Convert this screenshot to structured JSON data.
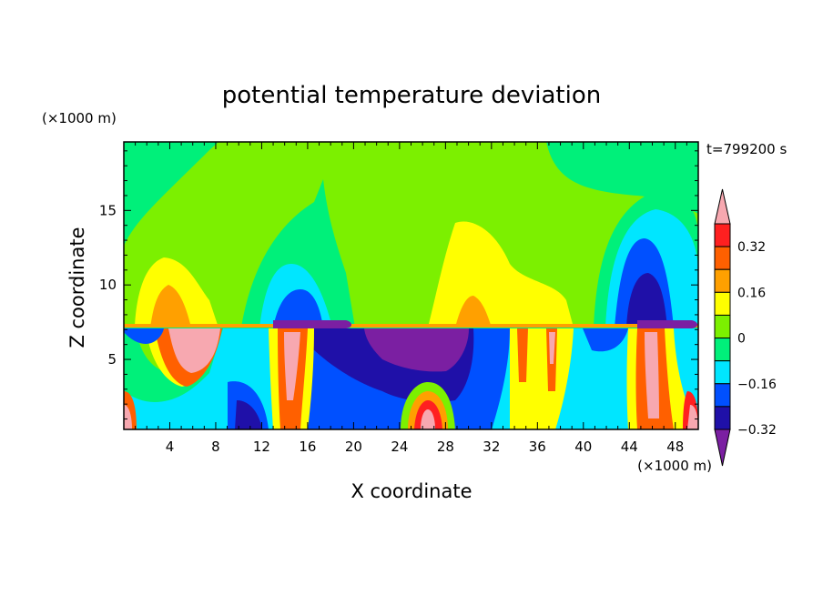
{
  "chart_data": {
    "type": "heatmap",
    "title": "potential temperature deviation",
    "xlabel": "X coordinate",
    "ylabel": "Z coordinate",
    "x_unit": "(×1000 m)",
    "y_unit": "(×1000 m)",
    "time_label": "t=799200 s",
    "xlim": [
      0,
      50
    ],
    "ylim": [
      0.3,
      19.6
    ],
    "x_ticks": [
      4,
      8,
      12,
      16,
      20,
      24,
      28,
      32,
      36,
      40,
      44,
      48
    ],
    "y_ticks": [
      5,
      10,
      15
    ],
    "colorbar": {
      "levels": [
        -0.4,
        -0.32,
        -0.24,
        -0.16,
        -0.08,
        0,
        0.08,
        0.16,
        0.24,
        0.32,
        0.4
      ],
      "tick_labels": [
        "0.32",
        "0.16",
        "0",
        "−0.16",
        "−0.32"
      ],
      "colors": [
        "#7b1fa2",
        "#1f10a8",
        "#0050ff",
        "#00e6ff",
        "#00f07a",
        "#7cf000",
        "#ffff00",
        "#ffa000",
        "#ff6000",
        "#ff2020",
        "#f7a8b0"
      ]
    }
  }
}
